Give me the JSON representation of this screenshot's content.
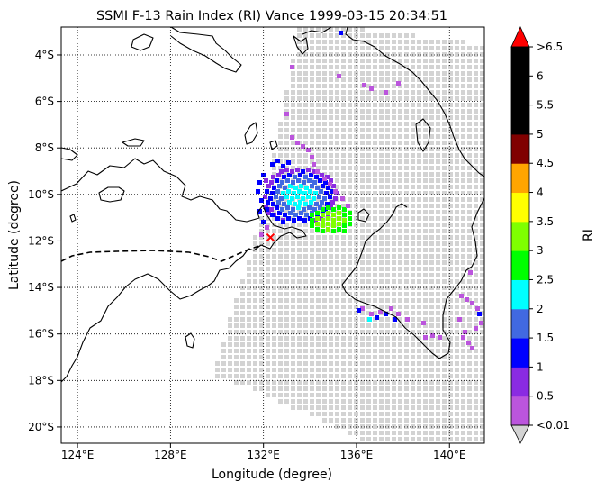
{
  "title": "SSMI F-13 Rain Index (RI) Vance 1999-03-15 20:34:51",
  "xlabel": "Longitude (degree)",
  "ylabel": "Latitude (degree)",
  "colorbar": {
    "label": "RI",
    "tick_labels": [
      "<0.01",
      "0.5",
      "1",
      "1.5",
      "2",
      "2.5",
      "3",
      "3.5",
      "4",
      "4.5",
      "5",
      "5.5",
      "6",
      ">6.5"
    ],
    "colors": [
      "#d3d3d3",
      "#bb55dd",
      "#8a2be2",
      "#0000ff",
      "#4169e1",
      "#00ffff",
      "#00ff00",
      "#7fff00",
      "#ffff00",
      "#ffa500",
      "#800000",
      "#000000",
      "#000000",
      "#000000",
      "#ff0000"
    ]
  },
  "map": {
    "lon_range": [
      123.3,
      141.5
    ],
    "lat_range": [
      -20.7,
      -2.8
    ],
    "lon_ticks": [
      124,
      128,
      132,
      136,
      140
    ],
    "lat_ticks": [
      -4,
      -6,
      -8,
      -10,
      -12,
      -14,
      -16,
      -18,
      -20
    ],
    "lon_tick_labels": [
      "124°E",
      "128°E",
      "132°E",
      "136°E",
      "140°E"
    ],
    "lat_tick_labels": [
      "4°S",
      "6°S",
      "8°S",
      "10°S",
      "12°S",
      "14°S",
      "16°S",
      "18°S",
      "20°S"
    ],
    "storm_marker": {
      "lon": 132.3,
      "lat": -11.85
    }
  }
}
